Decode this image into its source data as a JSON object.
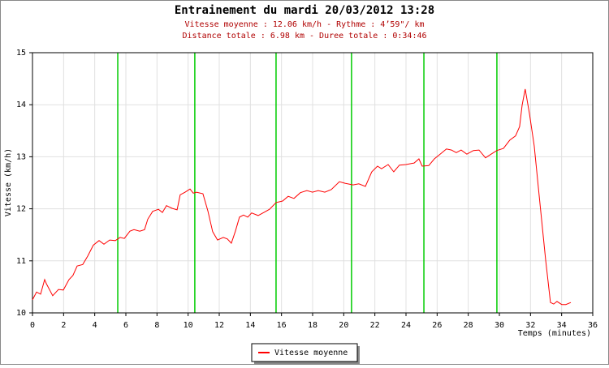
{
  "chart_data": {
    "type": "line",
    "title": "Entrainement du mardi 20/03/2012 13:28",
    "subtitle": [
      "Vitesse moyenne : 12.06 km/h - Rythme : 4’59\"/ km",
      "Distance totale : 6.98 km - Duree totale : 0:34:46"
    ],
    "xlabel": "Temps (minutes)",
    "ylabel": "Vitesse (km/h)",
    "x": [
      0,
      0.26,
      0.52,
      0.78,
      0.89,
      1.3,
      1.67,
      1.98,
      2.35,
      2.6,
      2.87,
      3.23,
      3.55,
      3.91,
      4.28,
      4.59,
      4.96,
      5.32,
      5.63,
      5.9,
      6.26,
      6.52,
      6.89,
      7.2,
      7.41,
      7.72,
      8.09,
      8.35,
      8.61,
      8.97,
      9.29,
      9.49,
      9.81,
      10.12,
      10.33,
      10.54,
      10.95,
      11.27,
      11.58,
      11.89,
      12.26,
      12.52,
      12.78,
      13.04,
      13.3,
      13.56,
      13.83,
      14.08,
      14.5,
      14.87,
      15.23,
      15.65,
      16.07,
      16.43,
      16.8,
      17.21,
      17.63,
      17.99,
      18.36,
      18.78,
      19.2,
      19.72,
      20.08,
      20.6,
      20.97,
      21.39,
      21.8,
      22.17,
      22.43,
      22.85,
      23.21,
      23.58,
      24.0,
      24.52,
      24.83,
      25.04,
      25.46,
      25.82,
      26.19,
      26.6,
      26.92,
      27.23,
      27.54,
      27.91,
      28.33,
      28.69,
      29.11,
      29.47,
      29.84,
      30.26,
      30.67,
      31.04,
      31.3,
      31.46,
      31.66,
      31.93,
      32.24,
      32.55,
      32.97,
      33.28,
      33.49,
      33.7,
      34.01,
      34.27,
      34.59
    ],
    "series": [
      {
        "name": "Vitesse moyenne",
        "color": "#ff0000",
        "values": [
          10.25,
          10.4,
          10.36,
          10.64,
          10.56,
          10.33,
          10.45,
          10.44,
          10.64,
          10.72,
          10.9,
          10.93,
          11.09,
          11.3,
          11.39,
          11.32,
          11.4,
          11.39,
          11.45,
          11.43,
          11.57,
          11.6,
          11.57,
          11.6,
          11.8,
          11.95,
          11.99,
          11.93,
          12.06,
          12.01,
          11.98,
          12.27,
          12.32,
          12.38,
          12.3,
          12.32,
          12.29,
          11.96,
          11.56,
          11.4,
          11.45,
          11.42,
          11.34,
          11.57,
          11.84,
          11.88,
          11.84,
          11.92,
          11.87,
          11.93,
          11.99,
          12.12,
          12.15,
          12.24,
          12.2,
          12.31,
          12.35,
          12.32,
          12.35,
          12.32,
          12.37,
          12.52,
          12.49,
          12.46,
          12.48,
          12.43,
          12.71,
          12.82,
          12.77,
          12.85,
          12.71,
          12.84,
          12.85,
          12.88,
          12.96,
          12.82,
          12.83,
          12.96,
          13.05,
          13.15,
          13.13,
          13.08,
          13.13,
          13.05,
          13.12,
          13.13,
          12.98,
          13.05,
          13.12,
          13.16,
          13.32,
          13.4,
          13.58,
          13.99,
          14.3,
          13.83,
          13.21,
          12.27,
          11.03,
          10.2,
          10.17,
          10.22,
          10.16,
          10.16,
          10.2
        ]
      }
    ],
    "vlines": [
      5.48,
      10.43,
      15.65,
      20.5,
      25.15,
      29.84
    ],
    "vline_color": "#00cc00",
    "xlim": [
      0,
      36
    ],
    "xticks": [
      0,
      2,
      4,
      6,
      8,
      10,
      12,
      14,
      16,
      18,
      20,
      22,
      24,
      26,
      28,
      30,
      32,
      34,
      36
    ],
    "ylim": [
      10,
      15
    ],
    "yticks": [
      10,
      11,
      12,
      13,
      14,
      15
    ],
    "grid": true,
    "legend": "bottom"
  }
}
